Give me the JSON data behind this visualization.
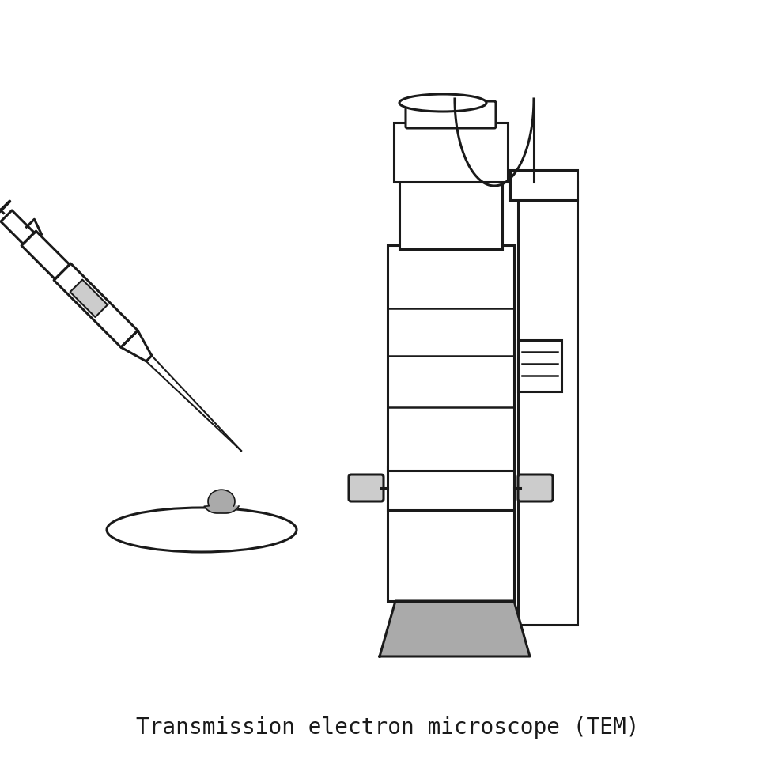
{
  "title": "Transmission electron microscope (TEM)",
  "title_fontsize": 20,
  "bg_color": "#ffffff",
  "line_color": "#1a1a1a",
  "gray_fill": "#aaaaaa",
  "light_gray": "#cccccc",
  "line_width": 2.2
}
